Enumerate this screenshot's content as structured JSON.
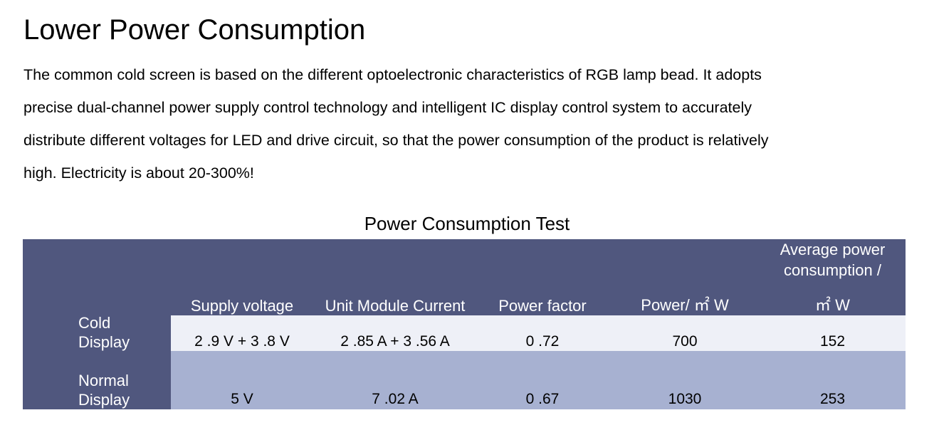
{
  "heading": "Lower Power Consumption",
  "paragraph_lines": [
    "The common cold screen is based on the different optoelectronic characteristics of RGB lamp bead. It adopts",
    "precise dual-channel power supply control technology and intelligent IC display control system to accurately",
    "distribute different voltages for LED and drive circuit, so that the power consumption of the product is relatively",
    "high. Electricity is about 20-300%!"
  ],
  "table": {
    "caption": "Power Consumption Test",
    "headers": {
      "supply_voltage": "Supply voltage",
      "unit_module_current": "Unit Module Current",
      "power_factor": "Power factor",
      "power": "Power/ ㎡ W",
      "avg_line1": "Average power",
      "avg_line2": "consumption /",
      "avg_line3": "㎡ W"
    },
    "rows": [
      {
        "label_line1": "Cold",
        "label_line2": "Display",
        "supply_voltage": "2 .9 V + 3 .8 V",
        "unit_module_current": "2 .85 A + 3 .56 A",
        "power_factor": "0 .72",
        "power": "700",
        "average_power": "152"
      },
      {
        "label_line1": "Normal",
        "label_line2": "Display",
        "supply_voltage": "5 V",
        "unit_module_current": "7 .02 A",
        "power_factor": "0 .67",
        "power": "1030",
        "average_power": "253"
      }
    ]
  },
  "colors": {
    "header_bg": "#50577e",
    "cold_row_bg": "#eef0f7",
    "normal_row_bg": "#a7b1d1"
  }
}
